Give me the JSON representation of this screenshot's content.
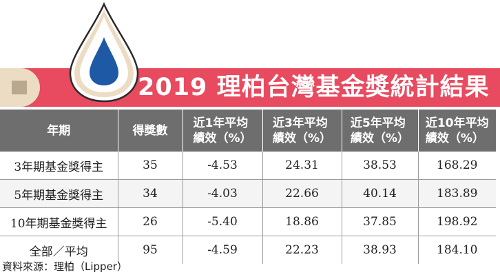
{
  "title": "2019 理柏台灣基金獎統計結果",
  "colors": {
    "banner": "#e84a5f",
    "header_bg": "#6e6e6e",
    "drop_blue": "#1d59a5",
    "logo_beige": "#ecdcc4"
  },
  "logo": {
    "icon": "water-drop-icon"
  },
  "table": {
    "headers": [
      {
        "line1": "年期",
        "line2": ""
      },
      {
        "line1": "得獎數",
        "line2": ""
      },
      {
        "line1": "近1年平均",
        "line2": "績效（%）"
      },
      {
        "line1": "近3年平均",
        "line2": "績效（%）"
      },
      {
        "line1": "近5年平均",
        "line2": "績效（%）"
      },
      {
        "line1": "近10年平均",
        "line2": "績效（%）"
      }
    ],
    "rows": [
      [
        "3年期基金獎得主",
        "35",
        "-4.53",
        "24.31",
        "38.53",
        "168.29"
      ],
      [
        "5年期基金獎得主",
        "34",
        "-4.03",
        "22.66",
        "40.14",
        "183.89"
      ],
      [
        "10年期基金獎得主",
        "26",
        "-5.40",
        "18.86",
        "37.85",
        "198.92"
      ],
      [
        "全部／平均",
        "95",
        "-4.59",
        "22.23",
        "38.93",
        "184.10"
      ]
    ]
  },
  "source": "資料來源：理柏（Lipper）"
}
